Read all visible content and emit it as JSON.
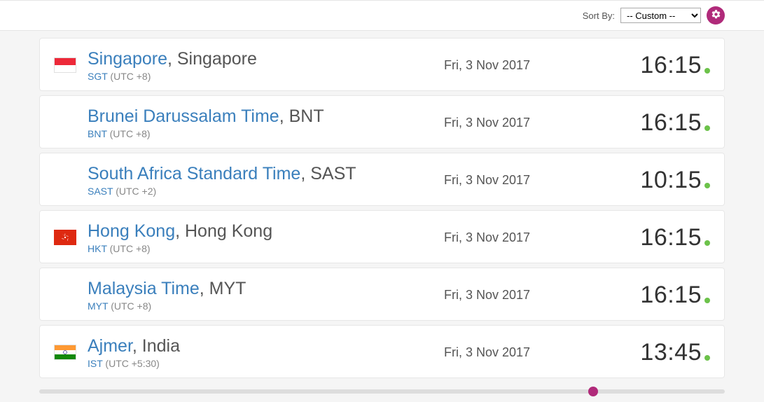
{
  "topbar": {
    "sort_label": "Sort By:",
    "sort_value": "-- Custom --"
  },
  "slider": {
    "position_pct": 80.8
  },
  "rows": [
    {
      "flag": "sg",
      "name": "Singapore",
      "suffix": ", Singapore",
      "abbr": "SGT",
      "offset": "(UTC +8)",
      "date": "Fri, 3 Nov 2017",
      "time": "16:15"
    },
    {
      "flag": "",
      "name": "Brunei Darussalam Time",
      "suffix": ", BNT",
      "abbr": "BNT",
      "offset": "(UTC +8)",
      "date": "Fri, 3 Nov 2017",
      "time": "16:15"
    },
    {
      "flag": "",
      "name": "South Africa Standard Time",
      "suffix": ", SAST",
      "abbr": "SAST",
      "offset": "(UTC +2)",
      "date": "Fri, 3 Nov 2017",
      "time": "10:15"
    },
    {
      "flag": "hk",
      "name": "Hong Kong",
      "suffix": ", Hong Kong",
      "abbr": "HKT",
      "offset": "(UTC +8)",
      "date": "Fri, 3 Nov 2017",
      "time": "16:15"
    },
    {
      "flag": "",
      "name": "Malaysia Time",
      "suffix": ", MYT",
      "abbr": "MYT",
      "offset": "(UTC +8)",
      "date": "Fri, 3 Nov 2017",
      "time": "16:15"
    },
    {
      "flag": "in",
      "name": "Ajmer",
      "suffix": ", India",
      "abbr": "IST",
      "offset": "(UTC +5:30)",
      "date": "Fri, 3 Nov 2017",
      "time": "13:45"
    }
  ]
}
